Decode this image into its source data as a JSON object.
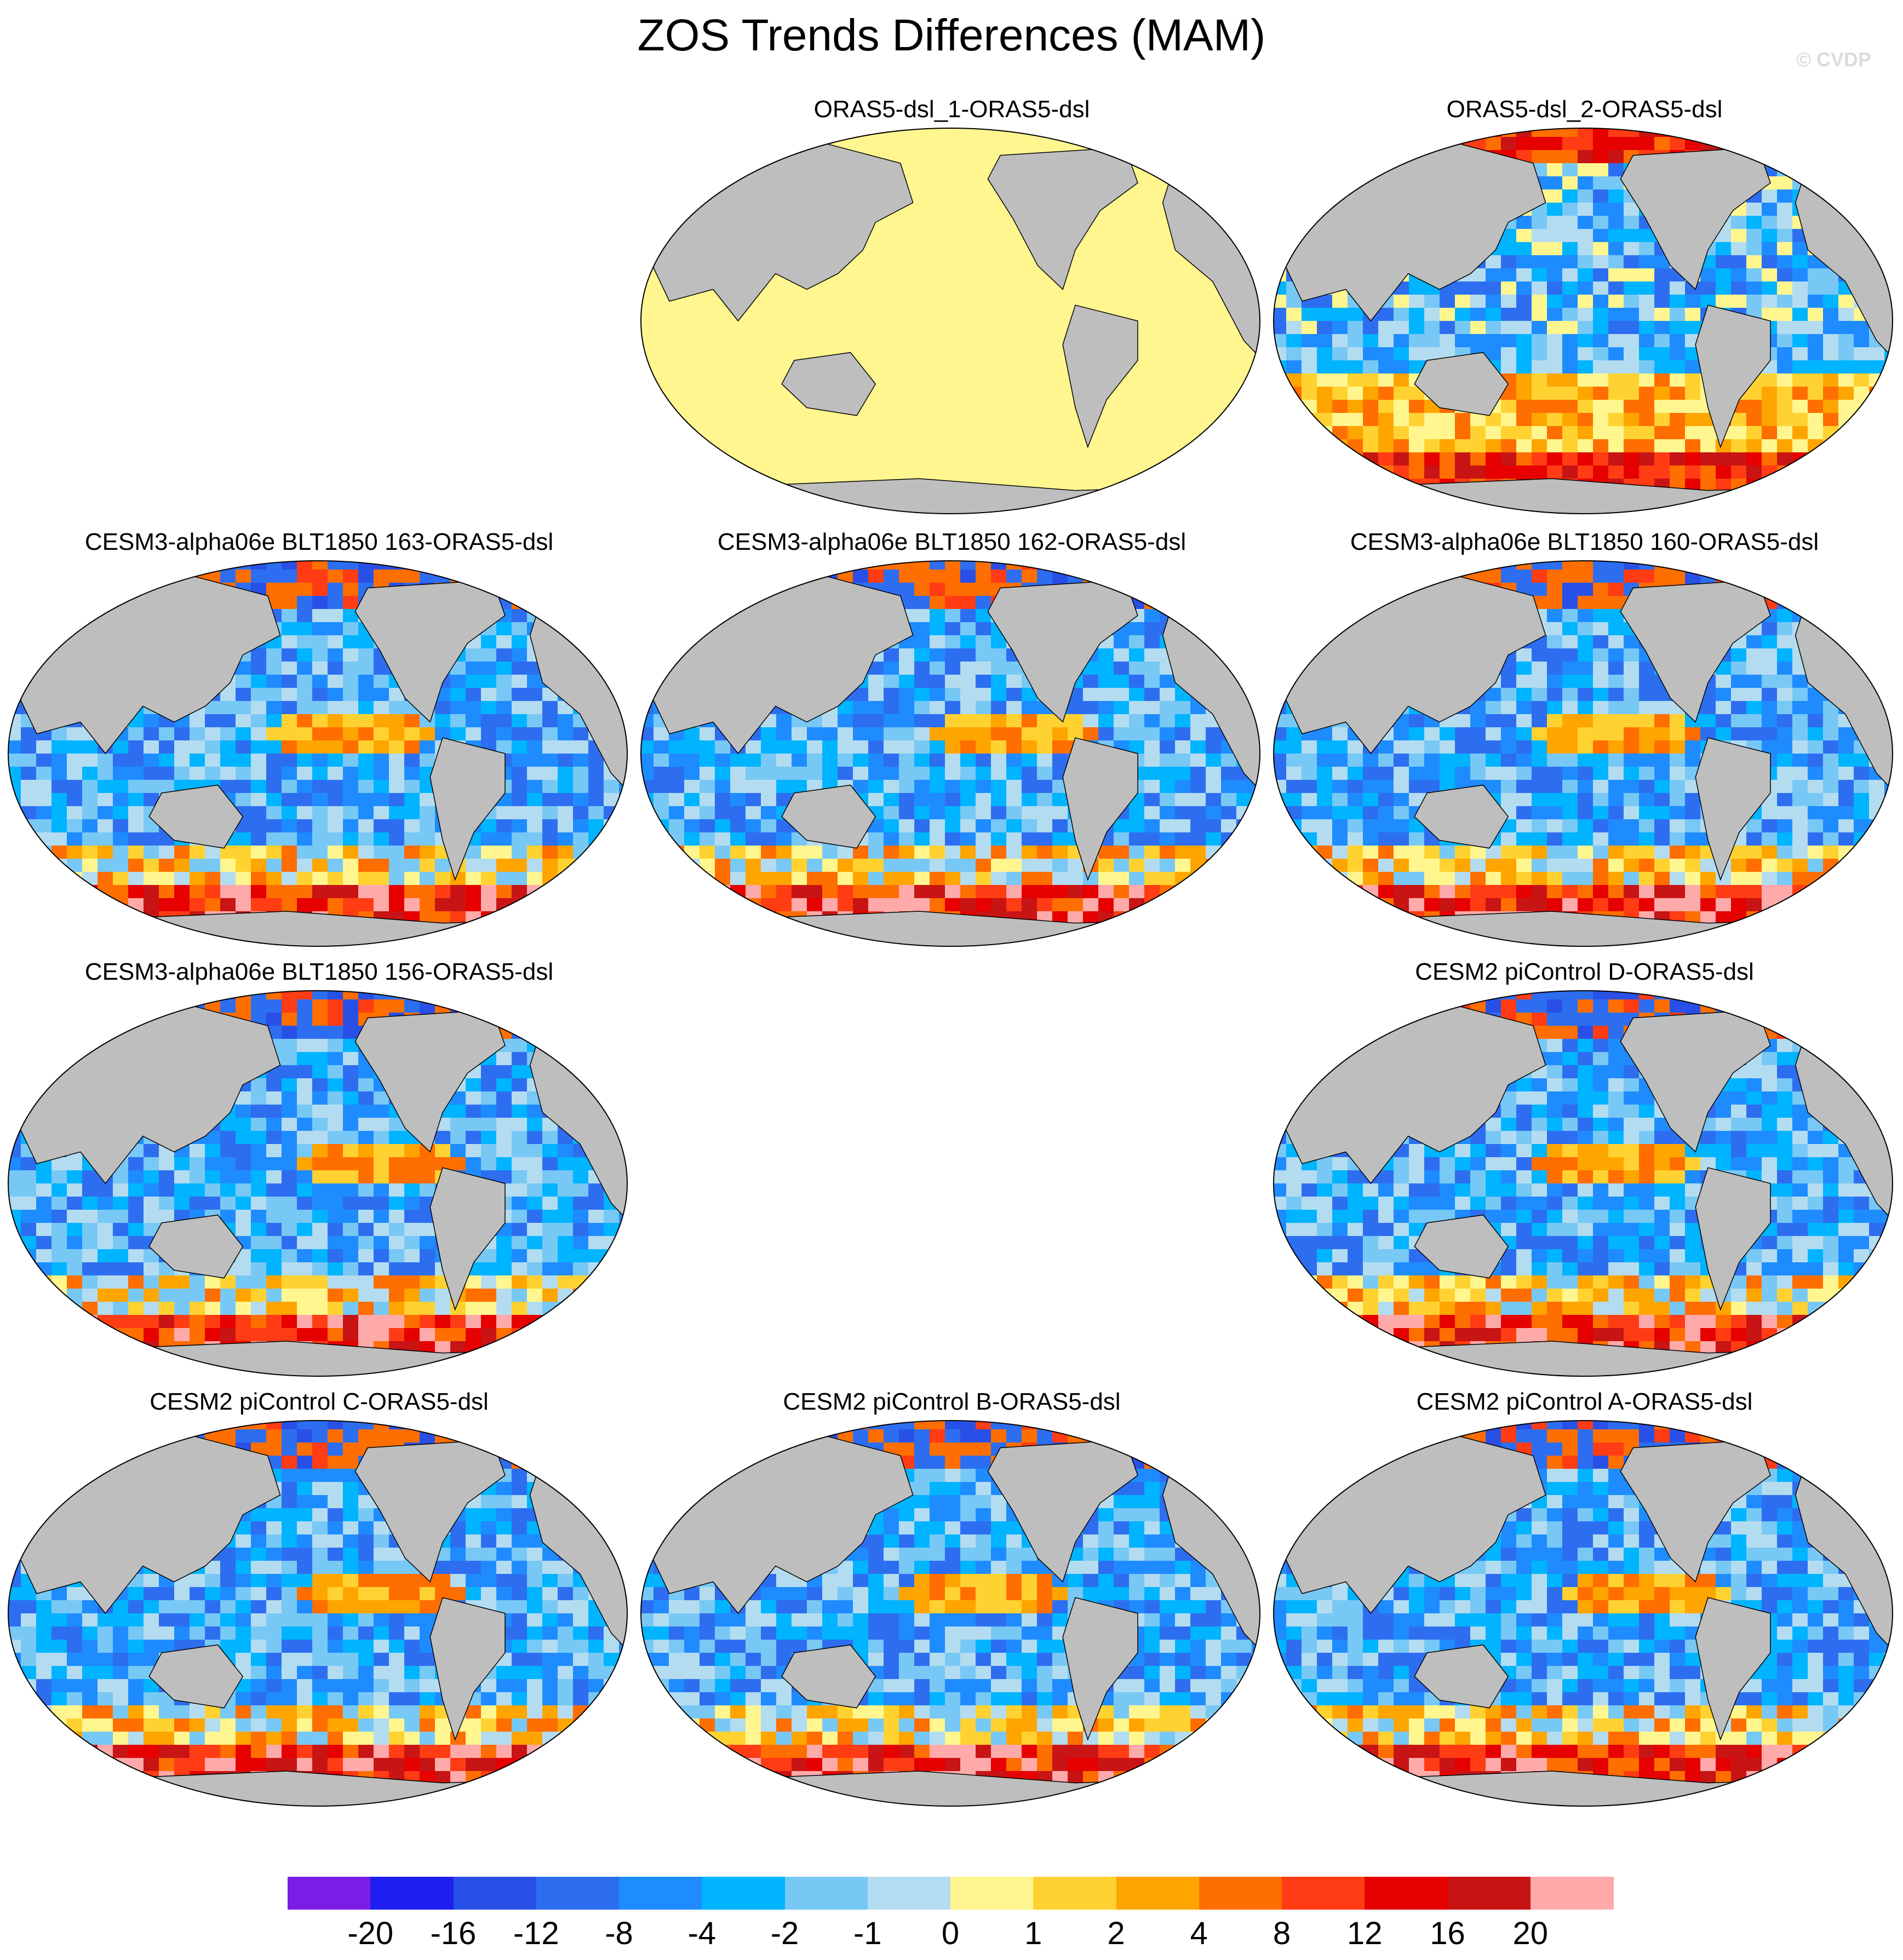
{
  "figure": {
    "title": "ZOS Trends Differences (MAM)",
    "watermark": "© CVDP"
  },
  "colors": {
    "land": "#bebebe",
    "uniform_ocean": "#fff68f",
    "scale": [
      "#7a1ee6",
      "#1e1ef0",
      "#2850e6",
      "#2d6ef0",
      "#1e8cff",
      "#00b4ff",
      "#78c8f5",
      "#b4dcf0",
      "#fff68f",
      "#ffd232",
      "#ffa500",
      "#ff6e00",
      "#ff3c14",
      "#e60000",
      "#c81414",
      "#ffaaaa"
    ]
  },
  "chart_data": {
    "type": "heatmap",
    "title": "ZOS Trends Differences (MAM)",
    "projection": "Robinson (Pacific-centred)",
    "colorbar": {
      "tick_labels": [
        "-20",
        "-16",
        "-12",
        "-8",
        "-4",
        "-2",
        "-1",
        "0",
        "1",
        "2",
        "4",
        "8",
        "12",
        "16",
        "20"
      ],
      "levels": [
        -20,
        -16,
        -12,
        -8,
        -4,
        -2,
        -1,
        0,
        1,
        2,
        4,
        8,
        12,
        16,
        20
      ]
    },
    "panels": [
      {
        "title": "ORAS5-dsl_1-ORAS5-dsl",
        "pattern": "uniform"
      },
      {
        "title": "ORAS5-dsl_2-ORAS5-dsl",
        "pattern": "noisy"
      },
      {
        "title": "CESM3-alpha06e BLT1850 163-ORAS5-dsl",
        "pattern": "model"
      },
      {
        "title": "CESM3-alpha06e BLT1850 162-ORAS5-dsl",
        "pattern": "model"
      },
      {
        "title": "CESM3-alpha06e BLT1850 160-ORAS5-dsl",
        "pattern": "model"
      },
      {
        "title": "CESM3-alpha06e BLT1850 156-ORAS5-dsl",
        "pattern": "model"
      },
      {
        "title": "CESM2 piControl D-ORAS5-dsl",
        "pattern": "model"
      },
      {
        "title": "CESM2 piControl C-ORAS5-dsl",
        "pattern": "model"
      },
      {
        "title": "CESM2 piControl B-ORAS5-dsl",
        "pattern": "model"
      },
      {
        "title": "CESM2 piControl A-ORAS5-dsl",
        "pattern": "model"
      }
    ]
  }
}
